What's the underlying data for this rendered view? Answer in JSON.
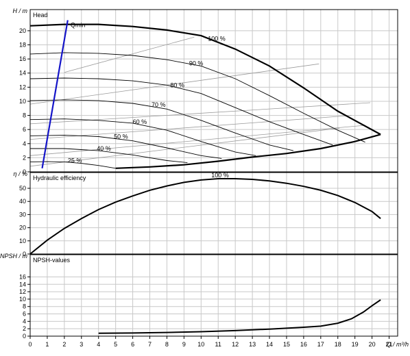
{
  "chart_data": {
    "type": "line",
    "x_axis": {
      "label": "Q / m³/h",
      "ticks": [
        0,
        1,
        2,
        3,
        4,
        5,
        6,
        7,
        8,
        9,
        10,
        11,
        12,
        13,
        14,
        15,
        16,
        17,
        18,
        19,
        20,
        21
      ],
      "range": [
        0,
        21.5
      ]
    },
    "panels": [
      {
        "id": "head",
        "title": "Head",
        "ylabel": "H / m",
        "ylim": [
          0,
          23
        ],
        "yticks": [
          0,
          2,
          4,
          6,
          8,
          10,
          12,
          14,
          16,
          18,
          20
        ],
        "speed_curves": [
          {
            "label": "100 %",
            "label_at": [
              10.4,
              18.6
            ],
            "points": [
              [
                0,
                20.7
              ],
              [
                2,
                20.9
              ],
              [
                4,
                20.9
              ],
              [
                6,
                20.6
              ],
              [
                8,
                20.1
              ],
              [
                10,
                19.3
              ],
              [
                12,
                17.4
              ],
              [
                14,
                15.0
              ],
              [
                16,
                11.9
              ],
              [
                18,
                8.6
              ],
              [
                20.5,
                5.3
              ]
            ]
          },
          {
            "label": "90 %",
            "label_at": [
              9.3,
              15.1
            ],
            "points": [
              [
                0,
                16.7
              ],
              [
                2,
                16.9
              ],
              [
                4,
                16.8
              ],
              [
                6,
                16.5
              ],
              [
                8,
                15.9
              ],
              [
                10,
                15.0
              ],
              [
                12,
                13.2
              ],
              [
                14,
                10.8
              ],
              [
                16,
                8.3
              ],
              [
                18,
                5.9
              ],
              [
                19.6,
                4.2
              ]
            ]
          },
          {
            "label": "80 %",
            "label_at": [
              8.2,
              12.0
            ],
            "points": [
              [
                0,
                13.2
              ],
              [
                2,
                13.3
              ],
              [
                4,
                13.2
              ],
              [
                6,
                12.9
              ],
              [
                8,
                12.3
              ],
              [
                10,
                11.1
              ],
              [
                12,
                9.1
              ],
              [
                14,
                7.1
              ],
              [
                16,
                5.3
              ],
              [
                17.7,
                3.8
              ]
            ]
          },
          {
            "label": "70 %",
            "label_at": [
              7.1,
              9.2
            ],
            "points": [
              [
                0,
                10.1
              ],
              [
                2,
                10.2
              ],
              [
                4,
                10.1
              ],
              [
                6,
                9.7
              ],
              [
                8,
                8.9
              ],
              [
                10,
                7.3
              ],
              [
                12,
                5.5
              ],
              [
                14,
                3.8
              ],
              [
                15.4,
                3.0
              ]
            ]
          },
          {
            "label": "60 %",
            "label_at": [
              6.0,
              6.8
            ],
            "points": [
              [
                0,
                7.4
              ],
              [
                2,
                7.5
              ],
              [
                4,
                7.3
              ],
              [
                6,
                6.9
              ],
              [
                8,
                5.9
              ],
              [
                10,
                4.3
              ],
              [
                12,
                2.8
              ],
              [
                13.2,
                2.3
              ]
            ]
          },
          {
            "label": "50 %",
            "label_at": [
              4.9,
              4.7
            ],
            "points": [
              [
                0,
                5.1
              ],
              [
                2,
                5.2
              ],
              [
                4,
                5.0
              ],
              [
                6,
                4.4
              ],
              [
                8,
                3.4
              ],
              [
                10,
                2.3
              ],
              [
                11.2,
                1.9
              ]
            ]
          },
          {
            "label": "40 %",
            "label_at": [
              3.9,
              3.0
            ],
            "points": [
              [
                0,
                3.3
              ],
              [
                2,
                3.3
              ],
              [
                4,
                3.0
              ],
              [
                6,
                2.4
              ],
              [
                8,
                1.6
              ],
              [
                9.2,
                1.3
              ]
            ]
          },
          {
            "label": "25 %",
            "label_at": [
              2.2,
              1.3
            ],
            "points": [
              [
                0,
                1.4
              ],
              [
                1,
                1.45
              ],
              [
                2,
                1.4
              ],
              [
                3,
                1.2
              ],
              [
                4,
                0.9
              ],
              [
                5,
                0.5
              ]
            ]
          }
        ],
        "efficiency_lines": [
          [
            [
              0,
              0.8
            ],
            [
              18.1,
              6.2
            ]
          ],
          [
            [
              0,
              2.3
            ],
            [
              19.6,
              6.6
            ]
          ],
          [
            [
              0,
              4.6
            ],
            [
              18.8,
              8.0
            ]
          ],
          [
            [
              0,
              6.8
            ],
            [
              19.9,
              9.8
            ]
          ],
          [
            [
              0,
              9.6
            ],
            [
              16.9,
              15.3
            ]
          ],
          [
            [
              2,
              14.1
            ],
            [
              9.6,
              19.1
            ]
          ]
        ],
        "min_flow_line": {
          "label": "Qmin",
          "points": [
            [
              0.7,
              0.5
            ],
            [
              2.2,
              21.5
            ]
          ]
        },
        "lower_envelope": [
          [
            5,
            0.5
          ],
          [
            7,
            0.7
          ],
          [
            9,
            1.0
          ],
          [
            11,
            1.5
          ],
          [
            13,
            2.1
          ],
          [
            15,
            2.6
          ],
          [
            17,
            3.3
          ],
          [
            19,
            4.3
          ],
          [
            20.5,
            5.3
          ]
        ]
      },
      {
        "id": "efficiency",
        "title": "Hydraulic efficiency",
        "ylabel": "η / %",
        "ylim": [
          0,
          62
        ],
        "yticks": [
          0,
          10,
          20,
          30,
          40,
          50
        ],
        "series": [
          {
            "label": "100 %",
            "label_at": [
              10.6,
              58.4
            ],
            "points": [
              [
                0,
                0
              ],
              [
                1,
                10.5
              ],
              [
                2,
                19.5
              ],
              [
                3,
                27.0
              ],
              [
                4,
                33.8
              ],
              [
                5,
                39.5
              ],
              [
                6,
                44.2
              ],
              [
                7,
                48.5
              ],
              [
                8,
                51.8
              ],
              [
                9,
                54.5
              ],
              [
                10,
                56.3
              ],
              [
                11,
                57.3
              ],
              [
                12,
                57.3
              ],
              [
                13,
                56.8
              ],
              [
                14,
                55.6
              ],
              [
                15,
                53.8
              ],
              [
                16,
                51.5
              ],
              [
                17,
                48.5
              ],
              [
                18,
                44.5
              ],
              [
                19,
                39.2
              ],
              [
                20,
                32.3
              ],
              [
                20.5,
                27.0
              ]
            ]
          }
        ]
      },
      {
        "id": "npsh",
        "title": "NPSH-values",
        "ylabel": "NPSH / m",
        "ylim": [
          0,
          22
        ],
        "yticks": [
          0,
          2,
          4,
          6,
          8,
          10,
          12,
          14,
          16
        ],
        "series": [
          {
            "label": "",
            "points": [
              [
                4,
                0.8
              ],
              [
                6,
                0.85
              ],
              [
                8,
                1.0
              ],
              [
                10,
                1.2
              ],
              [
                12,
                1.5
              ],
              [
                14,
                1.9
              ],
              [
                16,
                2.4
              ],
              [
                17,
                2.7
              ],
              [
                18,
                3.5
              ],
              [
                18.8,
                4.7
              ],
              [
                19.5,
                6.5
              ],
              [
                20,
                8.2
              ],
              [
                20.5,
                9.8
              ]
            ]
          }
        ]
      }
    ],
    "grid": true
  }
}
